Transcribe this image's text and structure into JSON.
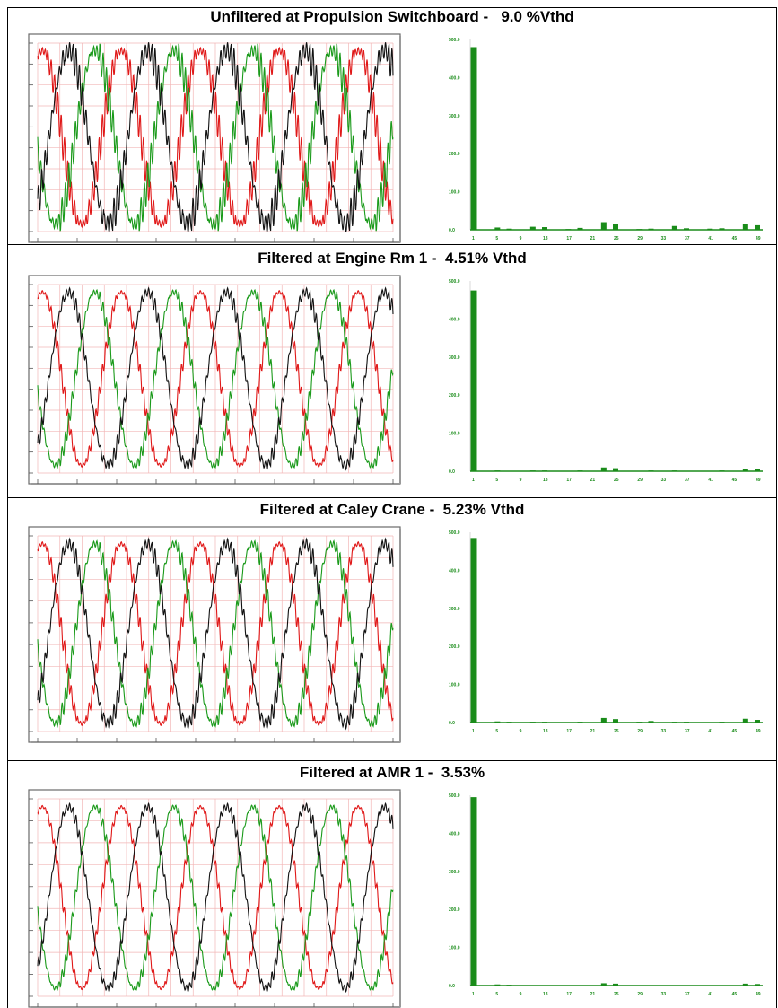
{
  "colors": {
    "phase_a": "#e01818",
    "phase_b": "#1a9a1a",
    "phase_c": "#111111",
    "grid": "#f2b6b6",
    "bar": "#1a8c1a"
  },
  "chart_data": [
    {
      "title": "Unfiltered at Propulsion Switchboard -   9.0 %Vthd",
      "waveform": {
        "type": "line",
        "series": [
          {
            "color": "phase_a",
            "phase_deg": 0
          },
          {
            "color": "phase_b",
            "phase_deg": 120
          },
          {
            "color": "phase_c",
            "phase_deg": 240
          }
        ],
        "cycles": 4.5,
        "distortion": 0.09
      },
      "spectrum": {
        "type": "bar",
        "yticks": [
          "500.0",
          "400.0",
          "300.0",
          "200.0",
          "100.0",
          "0.0"
        ],
        "ylim": [
          0,
          500
        ],
        "xticks": [
          "1",
          "5",
          "9",
          "13",
          "17",
          "21",
          "25",
          "29",
          "33",
          "37",
          "41",
          "45",
          "49"
        ],
        "harmonics": [
          1,
          5,
          7,
          11,
          13,
          17,
          19,
          23,
          25,
          29,
          31,
          35,
          37,
          41,
          43,
          47,
          49
        ],
        "values": [
          480,
          6,
          3,
          8,
          7,
          2,
          5,
          20,
          15,
          2,
          3,
          10,
          4,
          3,
          4,
          16,
          12
        ]
      }
    },
    {
      "title": "Filtered at Engine Rm 1 -  4.51% Vthd",
      "waveform": {
        "type": "line",
        "series": [
          {
            "color": "phase_a",
            "phase_deg": 0
          },
          {
            "color": "phase_b",
            "phase_deg": 120
          },
          {
            "color": "phase_c",
            "phase_deg": 240
          }
        ],
        "cycles": 4.5,
        "distortion": 0.045
      },
      "spectrum": {
        "type": "bar",
        "yticks": [
          "500.0",
          "400.0",
          "300.0",
          "200.0",
          "100.0",
          "0.0"
        ],
        "ylim": [
          0,
          500
        ],
        "xticks": [
          "1",
          "5",
          "9",
          "13",
          "17",
          "21",
          "25",
          "29",
          "33",
          "37",
          "41",
          "45",
          "49"
        ],
        "harmonics": [
          1,
          5,
          7,
          11,
          13,
          17,
          19,
          23,
          25,
          29,
          31,
          35,
          37,
          41,
          43,
          47,
          49
        ],
        "values": [
          475,
          2,
          1,
          2,
          2,
          1,
          2,
          10,
          8,
          1,
          2,
          2,
          1,
          1,
          2,
          6,
          5
        ]
      }
    },
    {
      "title": "Filtered at Caley Crane -  5.23% Vthd",
      "waveform": {
        "type": "line",
        "series": [
          {
            "color": "phase_a",
            "phase_deg": 0
          },
          {
            "color": "phase_b",
            "phase_deg": 120
          },
          {
            "color": "phase_c",
            "phase_deg": 240
          }
        ],
        "cycles": 4.5,
        "distortion": 0.052
      },
      "spectrum": {
        "type": "bar",
        "yticks": [
          "500.0",
          "400.0",
          "300.0",
          "200.0",
          "100.0",
          "0.0"
        ],
        "ylim": [
          0,
          500
        ],
        "xticks": [
          "1",
          "5",
          "9",
          "13",
          "17",
          "21",
          "25",
          "29",
          "33",
          "37",
          "41",
          "45",
          "49"
        ],
        "harmonics": [
          1,
          5,
          7,
          11,
          13,
          17,
          19,
          23,
          25,
          29,
          31,
          35,
          37,
          41,
          43,
          47,
          49
        ],
        "values": [
          485,
          3,
          2,
          2,
          2,
          1,
          2,
          12,
          9,
          2,
          4,
          2,
          2,
          1,
          2,
          10,
          7
        ]
      }
    },
    {
      "title": "Filtered at AMR 1 -  3.53%",
      "waveform": {
        "type": "line",
        "series": [
          {
            "color": "phase_a",
            "phase_deg": 0
          },
          {
            "color": "phase_b",
            "phase_deg": 120
          },
          {
            "color": "phase_c",
            "phase_deg": 240
          }
        ],
        "cycles": 4.5,
        "distortion": 0.035
      },
      "spectrum": {
        "type": "bar",
        "yticks": [
          "500.0",
          "400.0",
          "300.0",
          "200.0",
          "100.0",
          "0.0"
        ],
        "ylim": [
          0,
          500
        ],
        "xticks": [
          "1",
          "5",
          "9",
          "13",
          "17",
          "21",
          "25",
          "29",
          "33",
          "37",
          "41",
          "45",
          "49"
        ],
        "harmonics": [
          1,
          5,
          7,
          11,
          13,
          17,
          19,
          23,
          25,
          29,
          31,
          35,
          37,
          41,
          43,
          47,
          49
        ],
        "values": [
          495,
          3,
          2,
          1,
          1,
          1,
          1,
          6,
          5,
          1,
          1,
          1,
          1,
          1,
          1,
          5,
          4
        ]
      }
    }
  ]
}
